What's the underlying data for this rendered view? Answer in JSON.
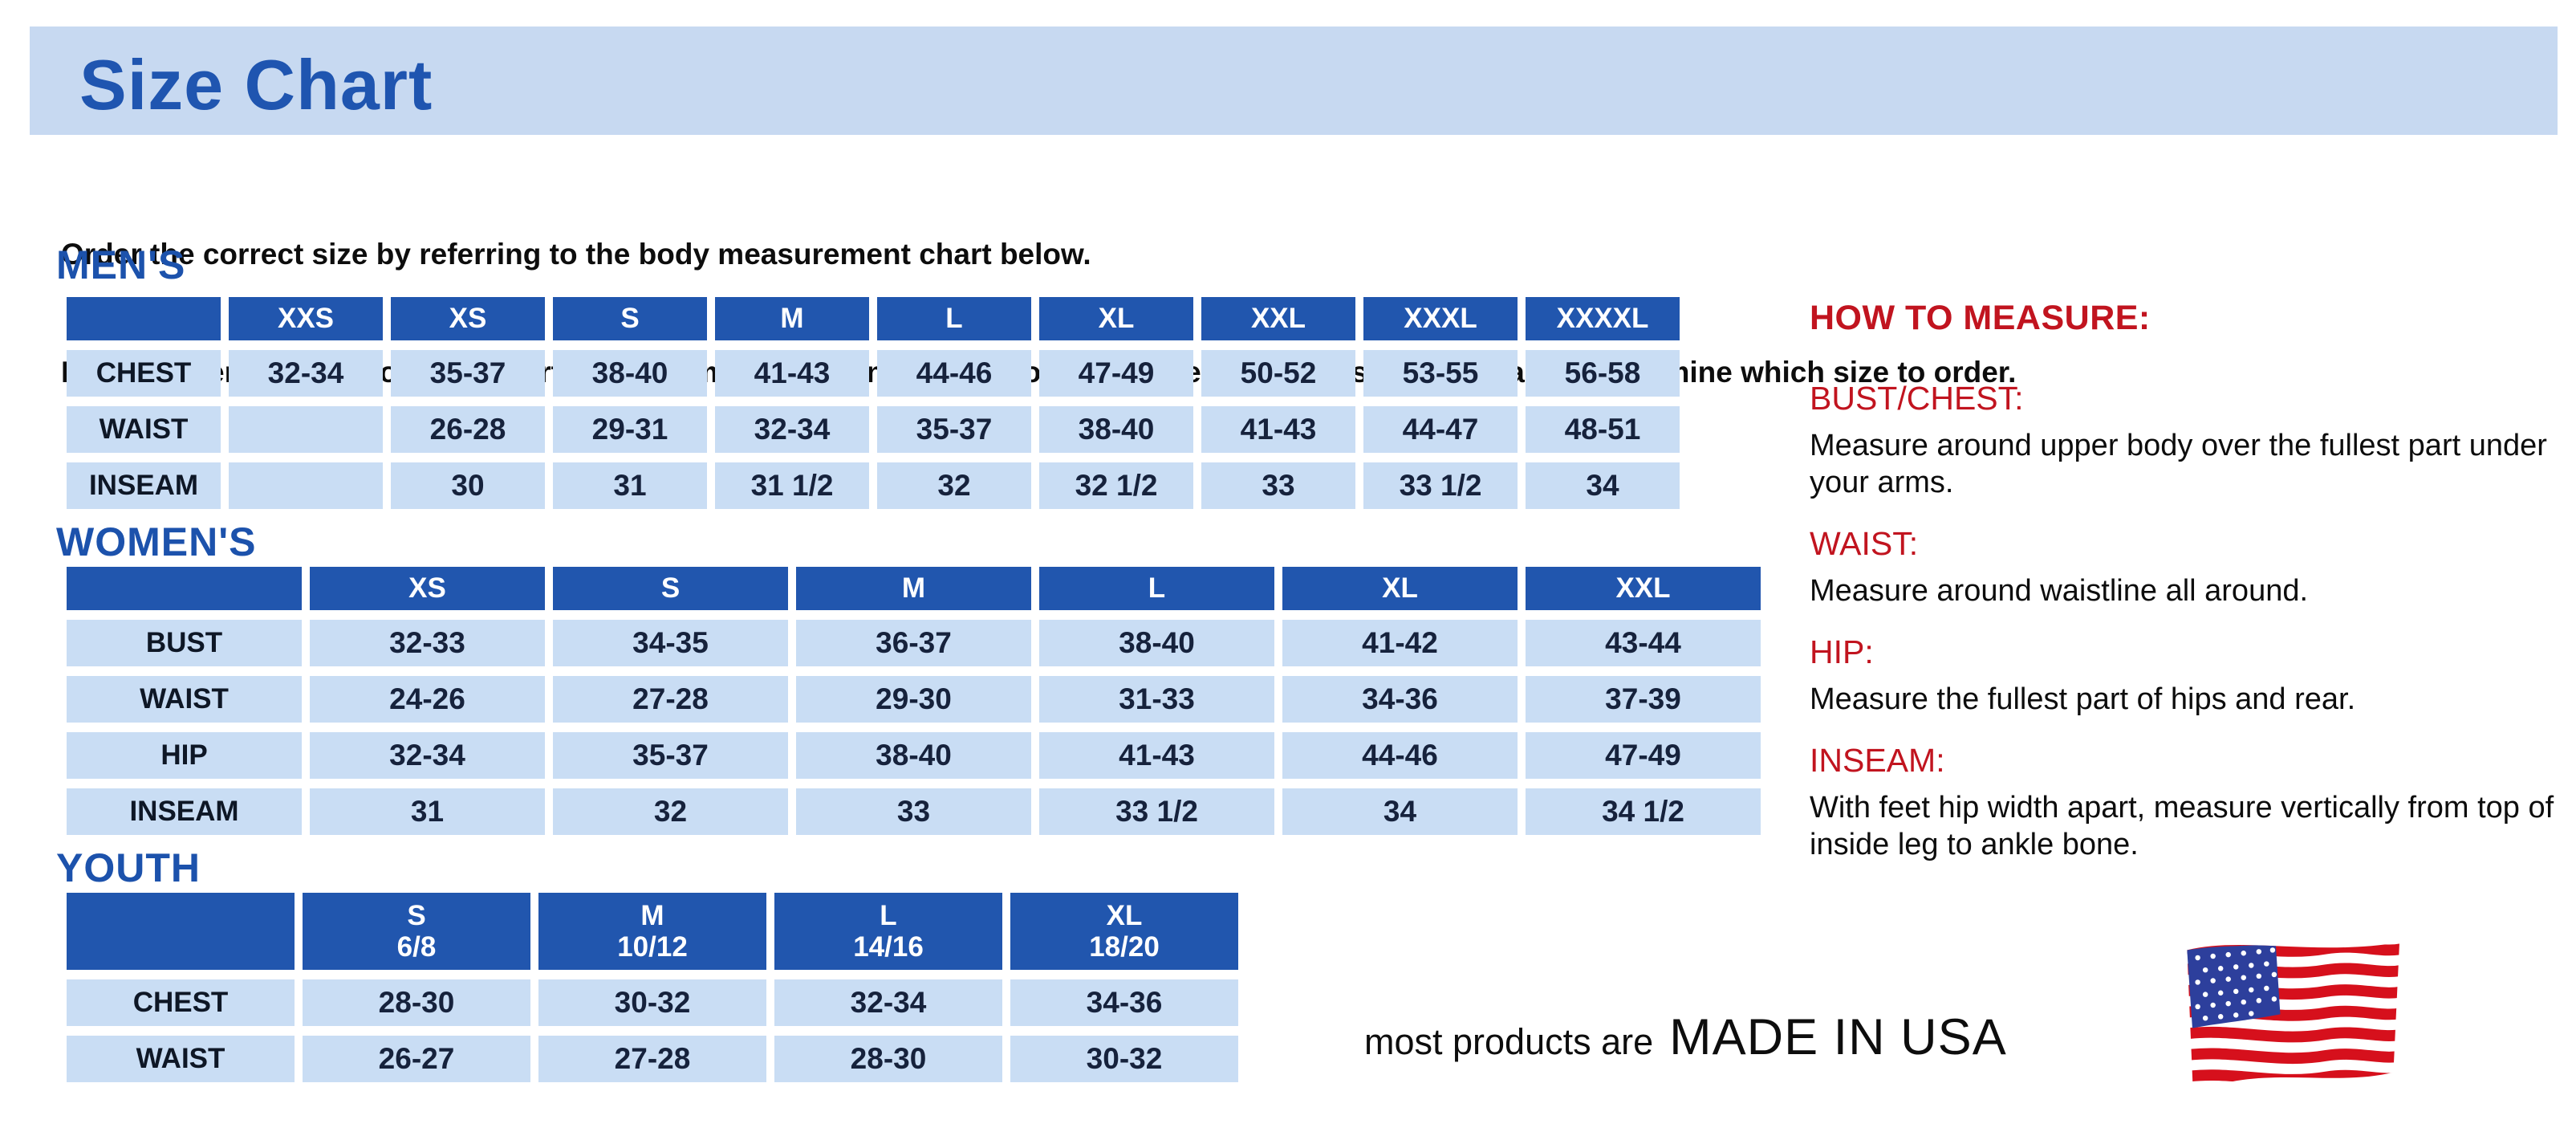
{
  "page": {
    "title": "Size Chart",
    "intro_line1": "Order the correct size by referring to the body measurement chart below.",
    "intro_line2": "Measurements shown on size chart are body measurements.  Find your body measurements on the chart to determine which size to order."
  },
  "tables": {
    "mens": {
      "section_label": "MEN'S",
      "columns": [
        {
          "label": "XXS"
        },
        {
          "label": "XS"
        },
        {
          "label": "S"
        },
        {
          "label": "M"
        },
        {
          "label": "L"
        },
        {
          "label": "XL"
        },
        {
          "label": "XXL"
        },
        {
          "label": "XXXL"
        },
        {
          "label": "XXXXL"
        }
      ],
      "rows": [
        {
          "label": "CHEST",
          "values": [
            "32-34",
            "35-37",
            "38-40",
            "41-43",
            "44-46",
            "47-49",
            "50-52",
            "53-55",
            "56-58"
          ]
        },
        {
          "label": "WAIST",
          "values": [
            "",
            "26-28",
            "29-31",
            "32-34",
            "35-37",
            "38-40",
            "41-43",
            "44-47",
            "48-51"
          ]
        },
        {
          "label": "INSEAM",
          "values": [
            "",
            "30",
            "31",
            "31 1/2",
            "32",
            "32 1/2",
            "33",
            "33 1/2",
            "34"
          ]
        }
      ]
    },
    "womens": {
      "section_label": "WOMEN'S",
      "columns": [
        {
          "label": "XS"
        },
        {
          "label": "S"
        },
        {
          "label": "M"
        },
        {
          "label": "L"
        },
        {
          "label": "XL"
        },
        {
          "label": "XXL"
        }
      ],
      "rows": [
        {
          "label": "BUST",
          "values": [
            "32-33",
            "34-35",
            "36-37",
            "38-40",
            "41-42",
            "43-44"
          ]
        },
        {
          "label": "WAIST",
          "values": [
            "24-26",
            "27-28",
            "29-30",
            "31-33",
            "34-36",
            "37-39"
          ]
        },
        {
          "label": "HIP",
          "values": [
            "32-34",
            "35-37",
            "38-40",
            "41-43",
            "44-46",
            "47-49"
          ]
        },
        {
          "label": "INSEAM",
          "values": [
            "31",
            "32",
            "33",
            "33 1/2",
            "34",
            "34 1/2"
          ]
        }
      ]
    },
    "youth": {
      "section_label": "YOUTH",
      "columns": [
        {
          "label": "S",
          "sub": "6/8"
        },
        {
          "label": "M",
          "sub": "10/12"
        },
        {
          "label": "L",
          "sub": "14/16"
        },
        {
          "label": "XL",
          "sub": "18/20"
        }
      ],
      "rows": [
        {
          "label": "CHEST",
          "values": [
            "28-30",
            "30-32",
            "32-34",
            "34-36"
          ]
        },
        {
          "label": "WAIST",
          "values": [
            "26-27",
            "27-28",
            "28-30",
            "30-32"
          ]
        }
      ]
    }
  },
  "how_to_measure": {
    "title": "HOW TO MEASURE:",
    "items": [
      {
        "label": "BUST/CHEST:",
        "text": "Measure around upper body over the fullest part under your arms."
      },
      {
        "label": "WAIST:",
        "text": "Measure around waistline all around."
      },
      {
        "label": "HIP:",
        "text": "Measure the fullest part of hips and rear."
      },
      {
        "label": "INSEAM:",
        "text": "With feet hip width apart, measure vertically from top of inside leg to ankle bone."
      }
    ]
  },
  "footer": {
    "prefix": "most products are",
    "emphasis": "MADE IN USA",
    "flag_icon": "us-flag-icon"
  },
  "colors": {
    "banner_blue": "#c7d9f1",
    "title_blue": "#1f55b0",
    "section_blue": "#1c52ac",
    "header_blue": "#2156ae",
    "cell_blue": "#c9ddf4",
    "cell_text": "#16223c",
    "red": "#c1141f",
    "flag_red": "#d6101c",
    "flag_canton_blue": "#2d3f9c"
  }
}
